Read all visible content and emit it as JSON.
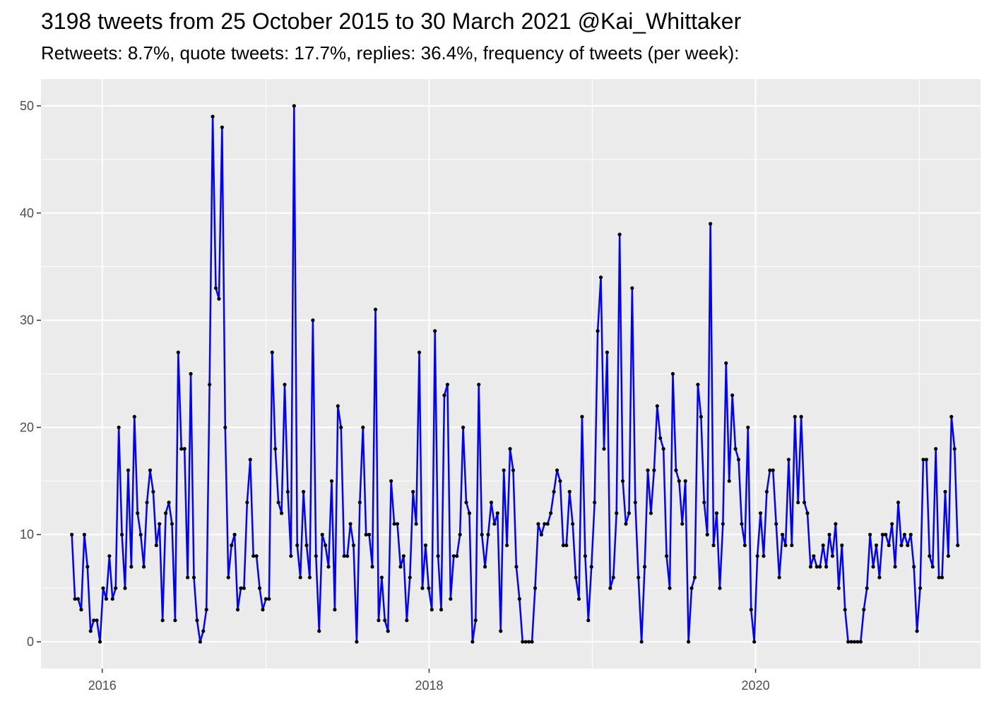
{
  "chart_data": {
    "type": "line",
    "title": "3198 tweets from 25 October 2015 to 30 March 2021 @Kai_Whittaker",
    "subtitle": "Retweets: 8.7%, quote tweets: 17.7%, replies: 36.4%, frequency of tweets (per week):",
    "xlabel": "",
    "ylabel": "",
    "x_tick_labels": [
      "2016",
      "2018",
      "2020"
    ],
    "y_tick_labels": [
      "0",
      "10",
      "20",
      "30",
      "40",
      "50"
    ],
    "x_range": [
      "2015-08-17",
      "2021-05-18"
    ],
    "ylim": [
      -2.5,
      52.5
    ],
    "grid": true,
    "legend": "none",
    "colors": {
      "line": "#0000ff",
      "point": "#000000",
      "panel": "#ebebeb",
      "grid": "#ffffff"
    },
    "series": [
      {
        "start_date": "2015-10-25",
        "interval_days": 7,
        "values": [
          10,
          4,
          4,
          3,
          10,
          7,
          1,
          2,
          2,
          0,
          5,
          4,
          8,
          4,
          5,
          20,
          10,
          5,
          16,
          7,
          21,
          12,
          10,
          7,
          13,
          16,
          14,
          9,
          11,
          2,
          12,
          13,
          11,
          2,
          27,
          18,
          18,
          6,
          25,
          6,
          2,
          0,
          1,
          3,
          24,
          49,
          33,
          32,
          48,
          20,
          6,
          9,
          10,
          3,
          5,
          5,
          13,
          17,
          8,
          8,
          5,
          3,
          4,
          4,
          27,
          18,
          13,
          12,
          24,
          14,
          8,
          50,
          9,
          6,
          14,
          9,
          6,
          30,
          8,
          1,
          10,
          9,
          7,
          15,
          3,
          22,
          20,
          8,
          8,
          11,
          9,
          0,
          13,
          20,
          10,
          10,
          7,
          31,
          2,
          6,
          2,
          1,
          15,
          11,
          11,
          7,
          8,
          2,
          6,
          14,
          11,
          27,
          5,
          9,
          5,
          3,
          29,
          8,
          3,
          23,
          24,
          4,
          8,
          8,
          10,
          20,
          13,
          12,
          0,
          2,
          24,
          10,
          7,
          10,
          13,
          11,
          12,
          1,
          16,
          9,
          18,
          16,
          7,
          4,
          0,
          0,
          0,
          0,
          5,
          11,
          10,
          11,
          11,
          12,
          14,
          16,
          15,
          9,
          9,
          14,
          11,
          6,
          4,
          21,
          8,
          2,
          7,
          13,
          29,
          34,
          18,
          27,
          5,
          6,
          12,
          38,
          15,
          11,
          12,
          33,
          13,
          6,
          0,
          7,
          16,
          12,
          16,
          22,
          19,
          18,
          8,
          5,
          25,
          16,
          15,
          11,
          15,
          0,
          5,
          6,
          24,
          21,
          13,
          10,
          39,
          9,
          12,
          5,
          11,
          26,
          15,
          23,
          18,
          17,
          11,
          9,
          20,
          3,
          0,
          8,
          12,
          8,
          14,
          16,
          16,
          11,
          6,
          10,
          9,
          17,
          9,
          21,
          13,
          21,
          13,
          12,
          7,
          8,
          7,
          7,
          9,
          7,
          10,
          8,
          11,
          5,
          9,
          3,
          0,
          0,
          0,
          0,
          0,
          3,
          5,
          10,
          7,
          9,
          6,
          10,
          10,
          9,
          11,
          7,
          13,
          9,
          10,
          9,
          10,
          7,
          1,
          5,
          17,
          17,
          8,
          7,
          18,
          6,
          6,
          14,
          8,
          21,
          18,
          9
        ]
      }
    ]
  }
}
